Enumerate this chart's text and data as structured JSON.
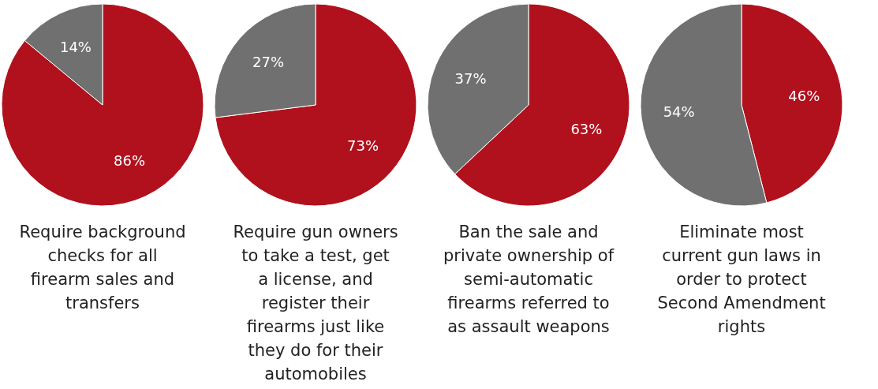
{
  "chart_data": [
    {
      "type": "pie",
      "title": "Require background checks for all firearm sales and transfers",
      "categories": [
        null,
        null
      ],
      "values": [
        86,
        14
      ],
      "colors": [
        "#b0111d",
        "#707070"
      ],
      "value_labels": [
        "86%",
        "14%"
      ]
    },
    {
      "type": "pie",
      "title": "Require gun owners to take a test, get a license, and register their firearms just like they do for their automobiles",
      "categories": [
        null,
        null
      ],
      "values": [
        73,
        27
      ],
      "colors": [
        "#b0111d",
        "#707070"
      ],
      "value_labels": [
        "73%",
        "27%"
      ]
    },
    {
      "type": "pie",
      "title": "Ban the sale and private ownership of semi-automatic firearms referred to as assault weapons",
      "categories": [
        null,
        null
      ],
      "values": [
        63,
        37
      ],
      "colors": [
        "#b0111d",
        "#707070"
      ],
      "value_labels": [
        "63%",
        "37%"
      ]
    },
    {
      "type": "pie",
      "title": "Eliminate most current gun laws in order to protect Second Amendment rights",
      "categories": [
        null,
        null
      ],
      "values": [
        46,
        54
      ],
      "colors": [
        "#b0111d",
        "#707070"
      ],
      "value_labels": [
        "46%",
        "54%"
      ]
    }
  ]
}
